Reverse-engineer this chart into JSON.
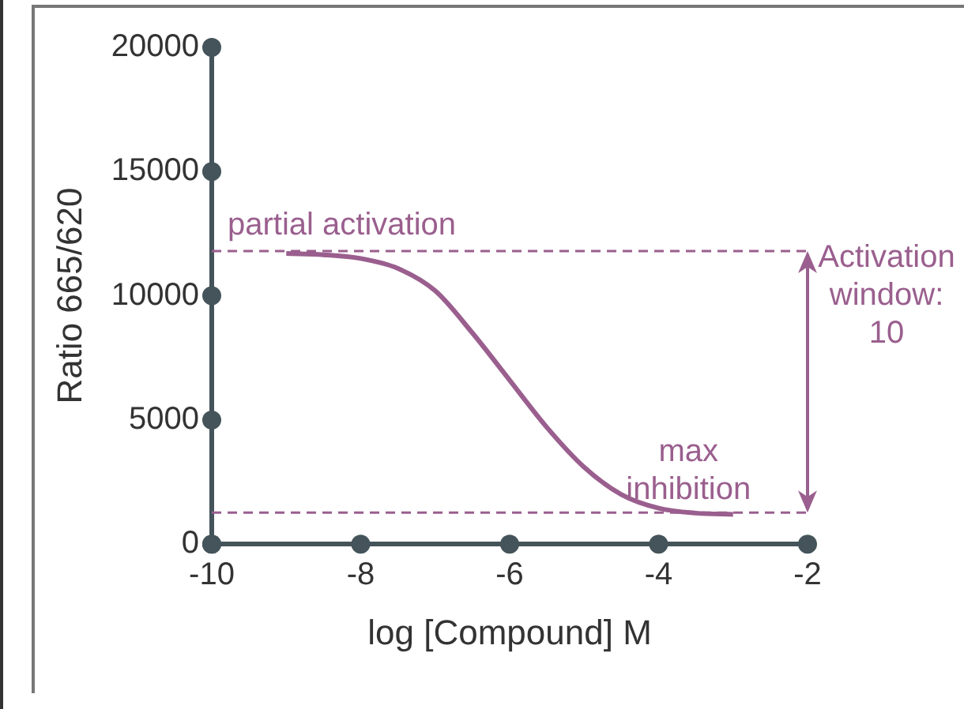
{
  "chart_data": {
    "type": "line",
    "xlabel": "log [Compound] M",
    "ylabel": "Ratio 665/620",
    "x": [
      -9,
      -8.5,
      -8,
      -7.5,
      -7,
      -6.5,
      -6,
      -5.5,
      -5,
      -4.5,
      -4,
      -3.5,
      -3
    ],
    "series": [
      {
        "color": "#9a5f8e",
        "values": [
          11700,
          11650,
          11500,
          11100,
          10200,
          8500,
          6600,
          4700,
          3100,
          2000,
          1450,
          1250,
          1200
        ]
      }
    ],
    "xlim": [
      -10,
      -2
    ],
    "xticks": [
      -10,
      -8,
      -6,
      -4,
      -2
    ],
    "ylim": [
      0,
      20000
    ],
    "yticks": [
      0,
      5000,
      10000,
      15000,
      20000
    ],
    "marker": "none",
    "line_style": "solid",
    "ref_lines": [
      {
        "axis": "y",
        "value": 11800,
        "color": "#9a5f8e",
        "line_style": "dashed"
      },
      {
        "axis": "y",
        "value": 1270,
        "color": "#9a5f8e",
        "line_style": "dashed"
      }
    ],
    "annotations": [
      {
        "text": "partial activation",
        "x": -10,
        "y": 11800
      },
      {
        "text": "max inhibition",
        "x": -3.6,
        "y": 1270
      },
      "Activation window: 10"
    ]
  }
}
